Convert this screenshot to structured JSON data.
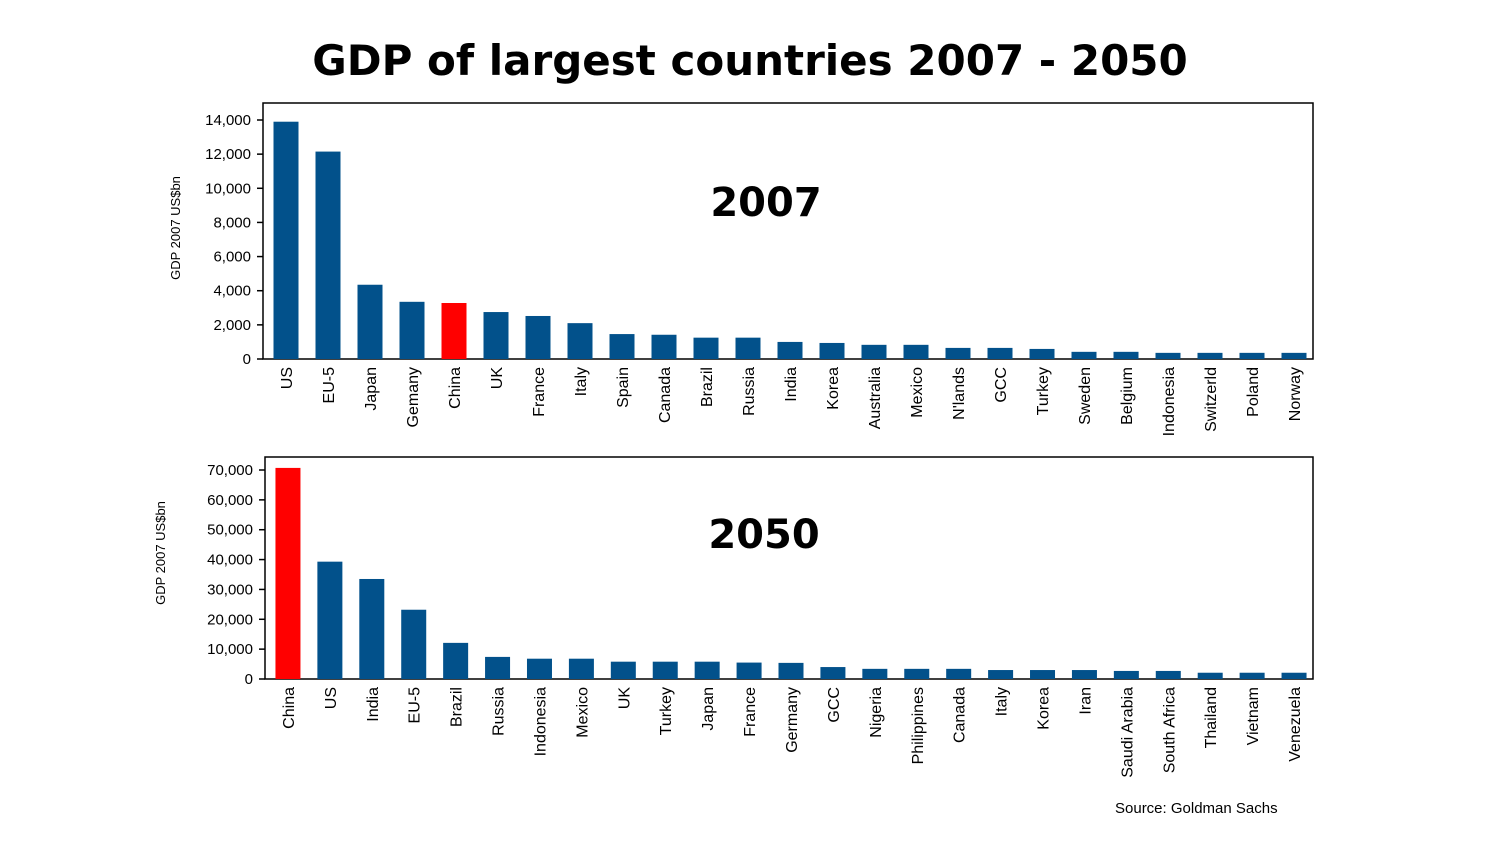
{
  "title": "GDP of largest countries 2007 - 2050",
  "source": "Source: Goldman Sachs",
  "colors": {
    "bar": "#02518B",
    "highlight": "#FF0000",
    "axis": "#000000"
  },
  "chart_data": [
    {
      "type": "bar",
      "title": "2007",
      "ylabel": "GDP 2007 US$bn",
      "ylim": [
        0,
        14000
      ],
      "yticks": [
        "0",
        "2,000",
        "4,000",
        "6,000",
        "8,000",
        "10,000",
        "12,000",
        "14,000"
      ],
      "grid": false,
      "highlight": "China",
      "categories": [
        "US",
        "EU-5",
        "Japan",
        "Gemany",
        "China",
        "UK",
        "France",
        "Italy",
        "Spain",
        "Canada",
        "Brazil",
        "Russia",
        "India",
        "Korea",
        "Australia",
        "Mexico",
        "N'lands",
        "GCC",
        "Turkey",
        "Sweden",
        "Belgium",
        "Indonesia",
        "Switzerld",
        "Poland",
        "Norway"
      ],
      "values": [
        13900,
        12150,
        4350,
        3350,
        3280,
        2750,
        2520,
        2100,
        1460,
        1420,
        1250,
        1250,
        1000,
        940,
        830,
        830,
        650,
        650,
        590,
        420,
        420,
        360,
        360,
        360,
        360
      ]
    },
    {
      "type": "bar",
      "title": "2050",
      "ylabel": "GDP 2007 US$bn",
      "ylim": [
        0,
        70000
      ],
      "yticks": [
        "0",
        "10,000",
        "20,000",
        "30,000",
        "40,000",
        "50,000",
        "60,000",
        "70,000"
      ],
      "grid": false,
      "highlight": "China",
      "categories": [
        "China",
        "US",
        "India",
        "EU-5",
        "Brazil",
        "Russia",
        "Indonesia",
        "Mexico",
        "UK",
        "Turkey",
        "Japan",
        "France",
        "Germany",
        "GCC",
        "Nigeria",
        "Philippines",
        "Canada",
        "Italy",
        "Korea",
        "Iran",
        "Saudi Arabia",
        "South Africa",
        "Thailand",
        "Vietnam",
        "Venezuela"
      ],
      "values": [
        70700,
        39300,
        33500,
        23200,
        12100,
        7400,
        6800,
        6800,
        5800,
        5800,
        5800,
        5500,
        5400,
        4000,
        3400,
        3400,
        3400,
        3000,
        3000,
        3000,
        2700,
        2700,
        2100,
        2100,
        2100
      ]
    }
  ]
}
